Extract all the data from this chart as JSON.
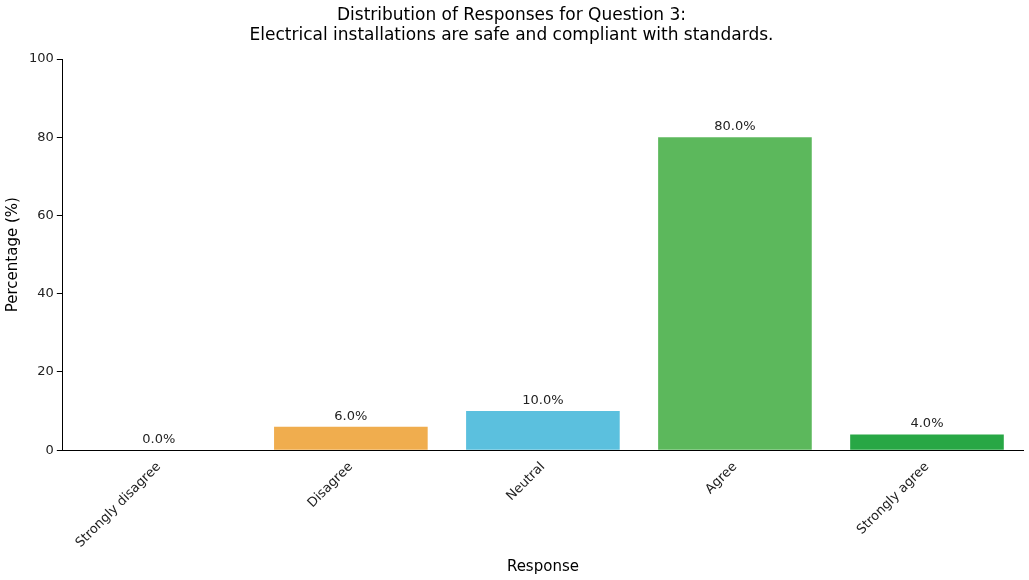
{
  "chart_data": {
    "type": "bar",
    "title": "Distribution of Responses for Question 3:\nElectrical installations are safe and compliant with standards.",
    "xlabel": "Response",
    "ylabel": "Percentage (%)",
    "categories": [
      "Strongly disagree",
      "Disagree",
      "Neutral",
      "Agree",
      "Strongly agree"
    ],
    "values": [
      0,
      6,
      10,
      80,
      4
    ],
    "colors": [
      "#d9534f",
      "#f0ad4e",
      "#5bc0de",
      "#5cb85c",
      "#28a745"
    ],
    "value_labels": [
      "0.0%",
      "6.0%",
      "10.0%",
      "80.0%",
      "4.0%"
    ],
    "ylim": [
      0,
      100
    ],
    "yticks": [
      0,
      20,
      40,
      60,
      80,
      100
    ],
    "grid": false,
    "legend": false
  }
}
